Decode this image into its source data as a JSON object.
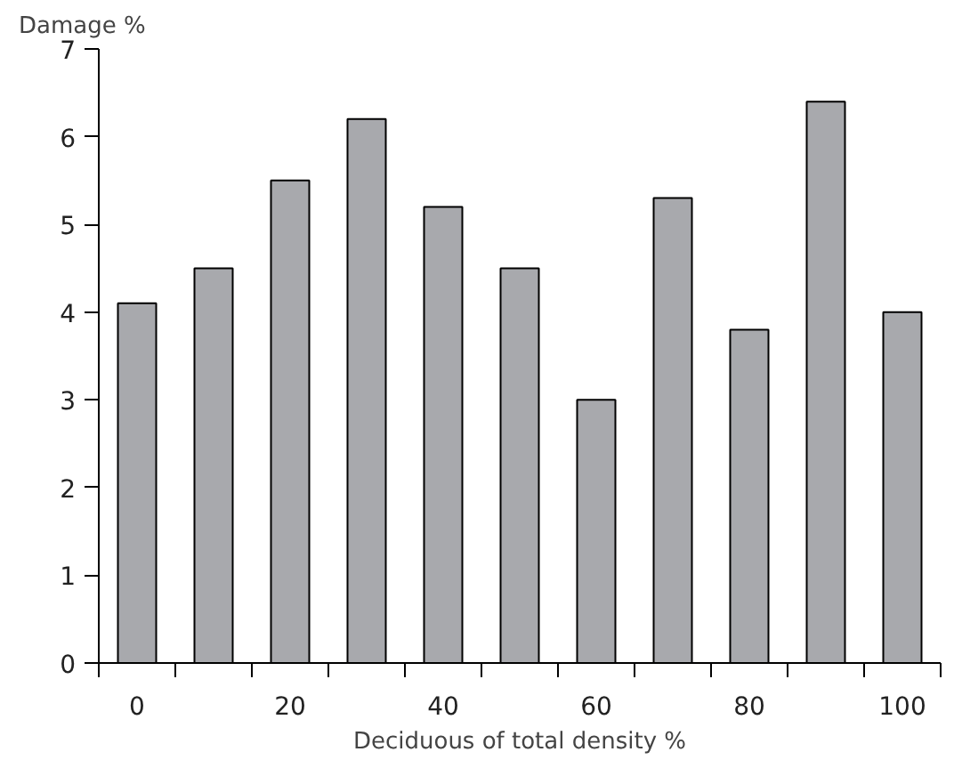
{
  "chart_data": {
    "type": "bar",
    "xlabel": "Deciduous of total density %",
    "ylabel": "Damage %",
    "x": [
      0,
      10,
      20,
      30,
      40,
      50,
      60,
      70,
      80,
      90,
      100
    ],
    "values": [
      4.1,
      4.5,
      5.5,
      6.2,
      5.2,
      4.5,
      3.0,
      5.3,
      3.8,
      6.4,
      4.0
    ],
    "color": "#a8a9ad",
    "xlim": [
      -5,
      105
    ],
    "xticks": [
      0,
      20,
      40,
      60,
      80,
      100,
      {
        "value": -5,
        "label": null
      },
      {
        "value": 5,
        "label": null
      },
      {
        "value": 15,
        "label": null
      },
      {
        "value": 25,
        "label": null
      },
      {
        "value": 35,
        "label": null
      },
      {
        "value": 45,
        "label": null
      },
      {
        "value": 55,
        "label": null
      },
      {
        "value": 65,
        "label": null
      },
      {
        "value": 75,
        "label": null
      },
      {
        "value": 85,
        "label": null
      },
      {
        "value": 95,
        "label": null
      },
      {
        "value": 105,
        "label": null
      }
    ],
    "ylim": [
      0,
      7
    ],
    "yticks": [
      0,
      1,
      2,
      3,
      4,
      5,
      6,
      7
    ],
    "grid": false
  }
}
